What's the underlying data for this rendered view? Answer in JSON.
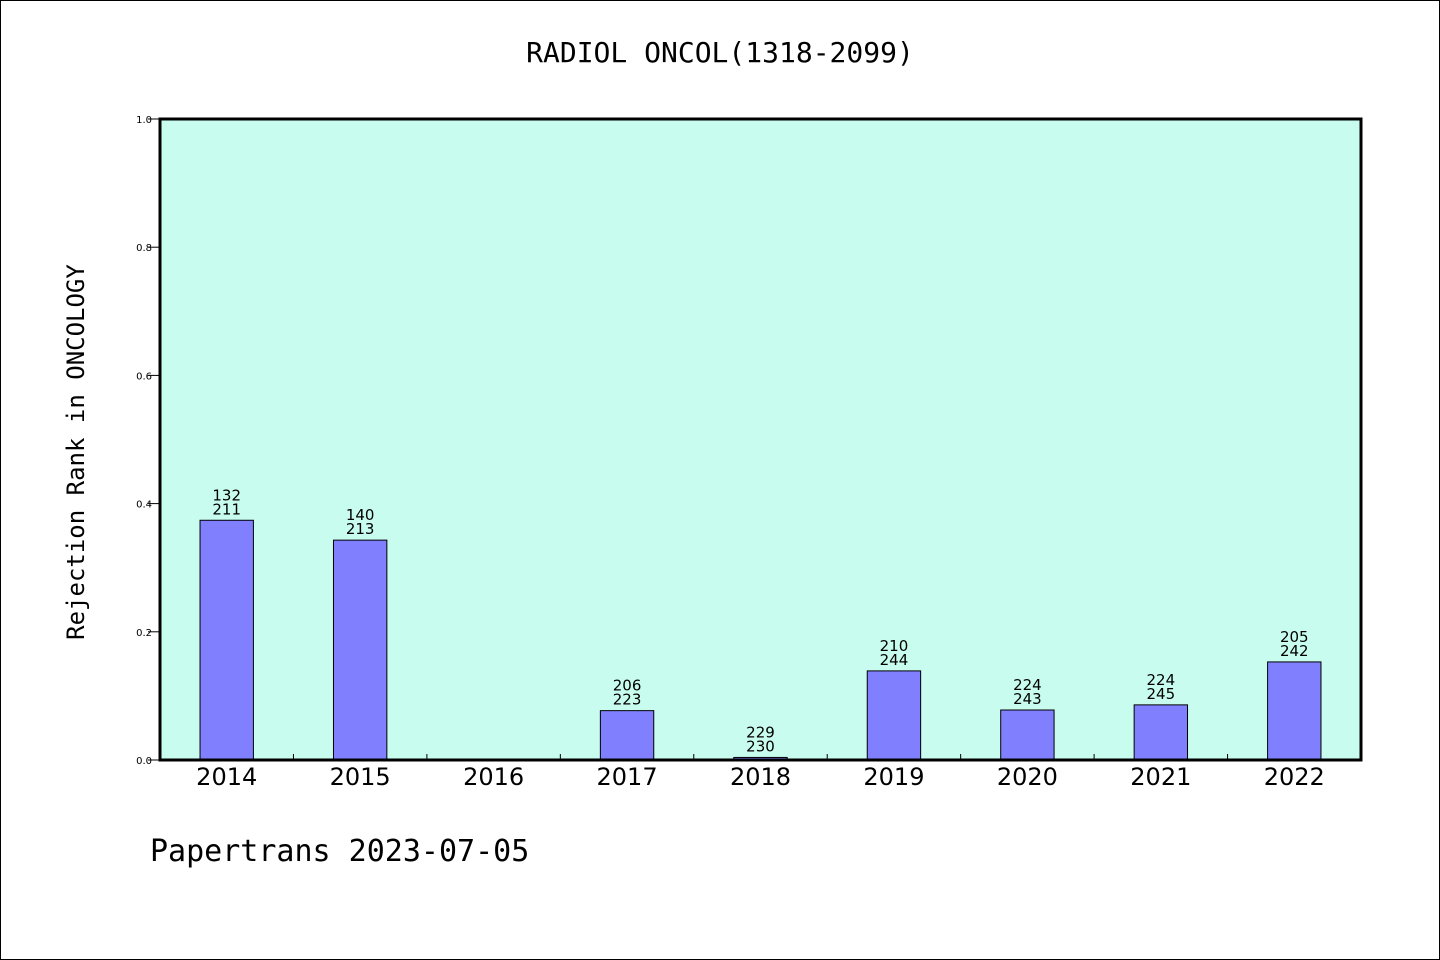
{
  "chart_data": {
    "type": "bar",
    "title": "RADIOL ONCOL(1318-2099)",
    "xlabel": "",
    "ylabel": "Rejection Rank in ONCOLOGY",
    "ylim": [
      0.0,
      1.0
    ],
    "yticks": [
      "0.0",
      "0.2",
      "0.4",
      "0.6",
      "0.8",
      "1.0"
    ],
    "categories": [
      "2014",
      "2015",
      "2016",
      "2017",
      "2018",
      "2019",
      "2020",
      "2021",
      "2022"
    ],
    "values": [
      0.374,
      0.343,
      null,
      0.077,
      0.004,
      0.139,
      0.078,
      0.086,
      0.153
    ],
    "bar_labels": [
      [
        "132",
        "211"
      ],
      [
        "140",
        "213"
      ],
      null,
      [
        "206",
        "223"
      ],
      [
        "229",
        "230"
      ],
      [
        "210",
        "244"
      ],
      [
        "224",
        "243"
      ],
      [
        "224",
        "245"
      ],
      [
        "205",
        "242"
      ]
    ],
    "grid": false,
    "colors": {
      "plot_background": "#c8fcee",
      "bar_fill": "#8080ff",
      "bar_stroke": "#000000"
    }
  },
  "footer": "Papertrans 2023-07-05"
}
